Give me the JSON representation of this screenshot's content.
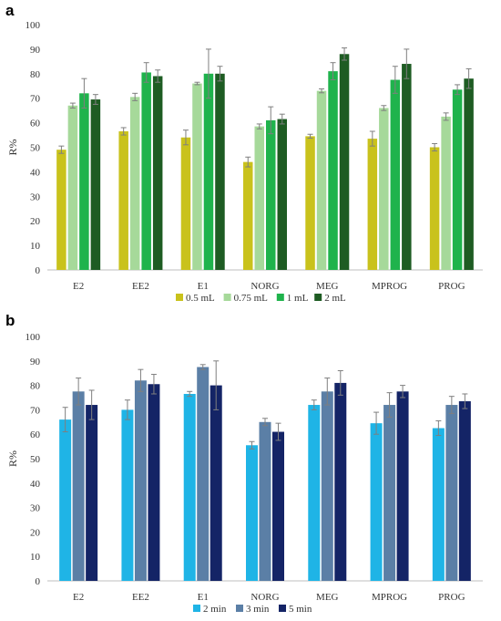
{
  "panel_a_label": "a",
  "panel_b_label": "b",
  "chart_data": [
    {
      "type": "bar",
      "title": "",
      "xlabel": "",
      "ylabel": "R%",
      "ylim": [
        0,
        100
      ],
      "yticks": [
        0,
        10,
        20,
        30,
        40,
        50,
        60,
        70,
        80,
        90,
        100
      ],
      "grid": false,
      "legend_position": "bottom",
      "categories": [
        "E2",
        "EE2",
        "E1",
        "NORG",
        "MEG",
        "MPROG",
        "PROG"
      ],
      "series": [
        {
          "name": "0.5 mL",
          "color": "#c9c21c",
          "values": [
            49,
            56.5,
            54,
            44,
            54.5,
            53.5,
            50
          ],
          "errors": [
            1.5,
            1.5,
            3,
            2,
            0.8,
            3,
            1.5
          ]
        },
        {
          "name": "0.75 mL",
          "color": "#a6d99a",
          "values": [
            67,
            70.5,
            76,
            58.5,
            73,
            66,
            62.5
          ],
          "errors": [
            1,
            1.5,
            0.5,
            1,
            0.8,
            1,
            1.5
          ]
        },
        {
          "name": "1 mL",
          "color": "#1fb34c",
          "values": [
            72,
            80.5,
            80,
            61,
            81,
            77.5,
            73.5
          ],
          "errors": [
            6,
            4,
            10,
            5.5,
            3.5,
            5.5,
            2
          ]
        },
        {
          "name": "2 mL",
          "color": "#1e5c23",
          "values": [
            69.5,
            79,
            80,
            61.5,
            88,
            84,
            78
          ],
          "errors": [
            2,
            2.5,
            3,
            2,
            2.5,
            6,
            4
          ]
        }
      ]
    },
    {
      "type": "bar",
      "title": "",
      "xlabel": "",
      "ylabel": "R%",
      "ylim": [
        0,
        100
      ],
      "yticks": [
        0,
        10,
        20,
        30,
        40,
        50,
        60,
        70,
        80,
        90,
        100
      ],
      "grid": false,
      "legend_position": "bottom",
      "categories": [
        "E2",
        "EE2",
        "E1",
        "NORG",
        "MEG",
        "MPROG",
        "PROG"
      ],
      "series": [
        {
          "name": "2 min",
          "color": "#1fb4e6",
          "values": [
            66,
            70,
            76.5,
            55.5,
            72,
            64.5,
            62.5
          ],
          "errors": [
            5,
            4,
            1,
            1.5,
            2,
            4.5,
            3
          ]
        },
        {
          "name": "3 min",
          "color": "#5b7fa6",
          "values": [
            77.5,
            82,
            87.5,
            65,
            77.5,
            72,
            72
          ],
          "errors": [
            5.5,
            4.5,
            1,
            1.5,
            5.5,
            5,
            3.5
          ]
        },
        {
          "name": "5 min",
          "color": "#142466",
          "values": [
            72,
            80.5,
            80,
            61,
            81,
            77.5,
            73.5
          ],
          "errors": [
            6,
            4,
            10,
            3.5,
            5,
            2.5,
            3
          ]
        }
      ]
    }
  ]
}
